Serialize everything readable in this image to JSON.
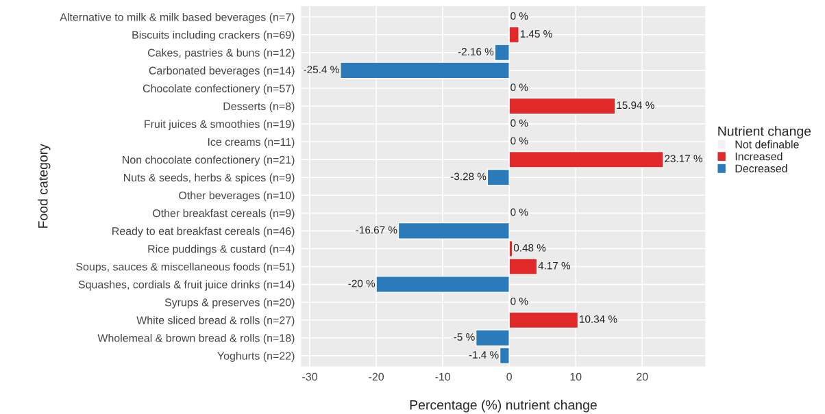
{
  "chart_data": {
    "type": "bar",
    "orientation": "horizontal",
    "xlabel": "Percentage (%) nutrient change",
    "ylabel": "Food category",
    "legend_title": "Nutrient change",
    "legend": "right",
    "grid": true,
    "categories": [
      "Alternative to milk & milk based beverages (n=7)",
      "Biscuits including crackers (n=69)",
      "Cakes, pastries & buns (n=12)",
      "Carbonated beverages (n=14)",
      "Chocolate confectionery (n=57)",
      "Desserts (n=8)",
      "Fruit juices & smoothies (n=19)",
      "Ice creams (n=11)",
      "Non chocolate confectionery (n=21)",
      "Nuts & seeds, herbs & spices (n=9)",
      "Other beverages (n=10)",
      "Other breakfast cereals (n=9)",
      "Ready to eat breakfast cereals (n=46)",
      "Rice puddings & custard (n=4)",
      "Soups, sauces & miscellaneous foods (n=51)",
      "Squashes, cordials & fruit juice drinks (n=14)",
      "Syrups & preserves (n=20)",
      "White sliced bread & rolls (n=27)",
      "Wholemeal & brown bread & rolls (n=18)",
      "Yoghurts (n=22)"
    ],
    "series": [
      {
        "name": "Not definable",
        "color": "#f2f2f2",
        "values": [
          0,
          null,
          null,
          null,
          0,
          null,
          0,
          0,
          null,
          null,
          null,
          0,
          null,
          null,
          null,
          null,
          0,
          null,
          null,
          null
        ],
        "value_labels": [
          "0 %",
          null,
          null,
          null,
          "0 %",
          null,
          "0 %",
          "0 %",
          null,
          null,
          null,
          "0 %",
          null,
          null,
          null,
          null,
          "0 %",
          null,
          null,
          null
        ]
      },
      {
        "name": "Increased",
        "color": "#e02a2a",
        "values": [
          null,
          1.45,
          null,
          null,
          null,
          15.94,
          null,
          null,
          23.17,
          null,
          null,
          null,
          null,
          0.48,
          4.17,
          null,
          null,
          10.34,
          null,
          null
        ],
        "value_labels": [
          null,
          "1.45 %",
          null,
          null,
          null,
          "15.94 %",
          null,
          null,
          "23.17 %",
          null,
          null,
          null,
          null,
          "0.48 %",
          "4.17 %",
          null,
          null,
          "10.34 %",
          null,
          null
        ]
      },
      {
        "name": "Decreased",
        "color": "#2b7bba",
        "values": [
          null,
          null,
          -2.16,
          -25.4,
          null,
          null,
          null,
          null,
          null,
          -3.28,
          null,
          null,
          -16.67,
          null,
          null,
          -20,
          null,
          null,
          -5,
          -1.4
        ],
        "value_labels": [
          null,
          null,
          "-2.16 %",
          "-25.4 %",
          null,
          null,
          null,
          null,
          null,
          "-3.28 %",
          null,
          null,
          "-16.67 %",
          null,
          null,
          "-20 %",
          null,
          null,
          "-5 %",
          "-1.4 %"
        ]
      }
    ],
    "xlim": [
      -31.3,
      29.5
    ],
    "xticks": [
      -30,
      -20,
      -10,
      0,
      10,
      20
    ]
  }
}
